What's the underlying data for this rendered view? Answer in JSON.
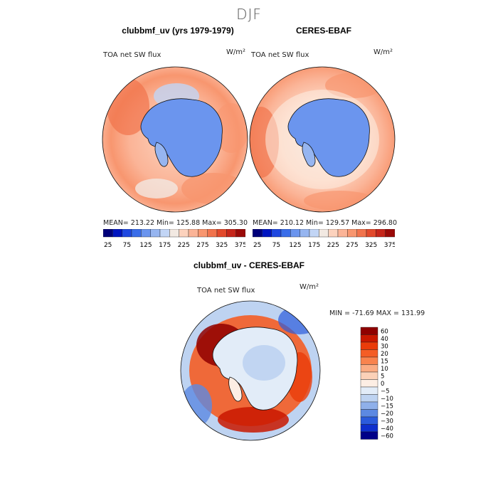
{
  "season": "DJF",
  "panels": [
    {
      "title": "clubbmf_uv (yrs 1979-1979)",
      "variable": "TOA net SW flux",
      "units": "W/m²",
      "stats": "MEAN= 213.22   Min= 125.88   Max= 305.30"
    },
    {
      "title": "CERES-EBAF",
      "variable": "TOA net SW flux",
      "units": "W/m²",
      "stats": "MEAN= 210.12   Min= 129.57   Max= 296.80"
    }
  ],
  "diff_panel": {
    "title": "clubbmf_uv - CERES-EBAF",
    "variable": "TOA net SW flux",
    "units": "W/m²",
    "stats": "MIN = -71.69  MAX = 131.99"
  },
  "chart_data": [
    {
      "type": "heatmap",
      "title": "clubbmf_uv (yrs 1979-1979)",
      "subtitle": "TOA net SW flux",
      "units": "W/m²",
      "projection": "south polar stereographic",
      "mean": 213.22,
      "min": 125.88,
      "max": 305.3,
      "colorbar_levels": [
        25,
        50,
        75,
        100,
        125,
        150,
        175,
        200,
        225,
        250,
        275,
        300,
        325,
        350,
        375
      ],
      "colorbar_labels": [
        "25",
        "75",
        "125",
        "175",
        "225",
        "275",
        "325",
        "375"
      ]
    },
    {
      "type": "heatmap",
      "title": "CERES-EBAF",
      "subtitle": "TOA net SW flux",
      "units": "W/m²",
      "projection": "south polar stereographic",
      "mean": 210.12,
      "min": 129.57,
      "max": 296.8,
      "colorbar_levels": [
        25,
        50,
        75,
        100,
        125,
        150,
        175,
        200,
        225,
        250,
        275,
        300,
        325,
        350,
        375
      ],
      "colorbar_labels": [
        "25",
        "75",
        "125",
        "175",
        "225",
        "275",
        "325",
        "375"
      ]
    },
    {
      "type": "heatmap",
      "title": "clubbmf_uv - CERES-EBAF",
      "subtitle": "TOA net SW flux",
      "units": "W/m²",
      "projection": "south polar stereographic",
      "min": -71.69,
      "max": 131.99,
      "colorbar_levels": [
        60,
        40,
        30,
        20,
        15,
        10,
        5,
        0,
        -5,
        -10,
        -15,
        -20,
        -30,
        -40,
        -60
      ],
      "colorbar_labels": [
        "60",
        "40",
        "30",
        "20",
        "15",
        "10",
        "5",
        "0",
        "−5",
        "−10",
        "−15",
        "−20",
        "−30",
        "−40",
        "−60"
      ]
    }
  ],
  "colors": {
    "abs_scale": [
      "#00007a",
      "#0015c0",
      "#1f48e0",
      "#3a6de9",
      "#6b95ee",
      "#96b5f0",
      "#c2d5f5",
      "#f2e9e2",
      "#fcd2bd",
      "#fbb497",
      "#f8966f",
      "#f1734c",
      "#e2492b",
      "#c6261a",
      "#9a0a08"
    ],
    "diff_scale": [
      "#8f0000",
      "#c91800",
      "#ea3c0a",
      "#f45d25",
      "#f9834d",
      "#fbac83",
      "#fbd1b8",
      "#fdeee4",
      "#e2ecf8",
      "#bed3f1",
      "#8fb0ea",
      "#5c89e2",
      "#2b5bdc",
      "#0e2fcd",
      "#000088"
    ]
  }
}
